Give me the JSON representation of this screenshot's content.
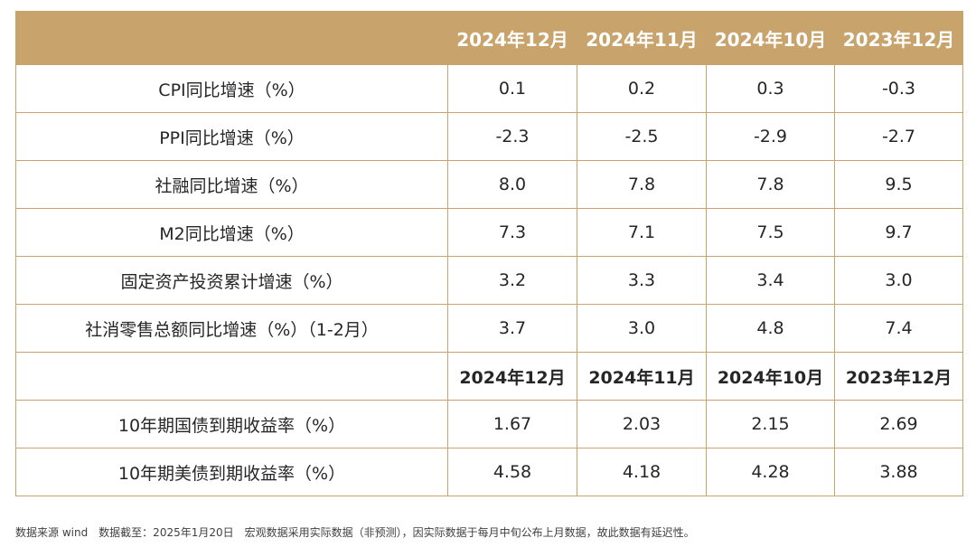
{
  "table": {
    "header_top": [
      "",
      "2024年12月",
      "2024年11月",
      "2024年10月",
      "2023年12月"
    ],
    "rows_top": [
      {
        "label": "CPI同比增速（%）",
        "values": [
          "0.1",
          "0.2",
          "0.3",
          "-0.3"
        ]
      },
      {
        "label": "PPI同比增速（%）",
        "values": [
          "-2.3",
          "-2.5",
          "-2.9",
          "-2.7"
        ]
      },
      {
        "label": "社融同比增速（%）",
        "values": [
          "8.0",
          "7.8",
          "7.8",
          "9.5"
        ]
      },
      {
        "label": "M2同比增速（%）",
        "values": [
          "7.3",
          "7.1",
          "7.5",
          "9.7"
        ]
      },
      {
        "label": "固定资产投资累计增速（%）",
        "values": [
          "3.2",
          "3.3",
          "3.4",
          "3.0"
        ]
      },
      {
        "label": "社消零售总额同比增速（%）（1-2月）",
        "values": [
          "3.7",
          "3.0",
          "4.8",
          "7.4"
        ]
      }
    ],
    "header_mid": [
      "",
      "2024年12月",
      "2024年11月",
      "2024年10月",
      "2023年12月"
    ],
    "rows_bottom": [
      {
        "label": "10年期国债到期收益率（%）",
        "values": [
          "1.67",
          "2.03",
          "2.15",
          "2.69"
        ]
      },
      {
        "label": "10年期美债到期收益率（%）",
        "values": [
          "4.58",
          "4.18",
          "4.28",
          "3.88"
        ]
      }
    ]
  },
  "footnote": "数据来源 wind　数据截至：2025年1月20日　宏观数据采用实际数据（非预测），因实际数据于每月中旬公布上月数据，故此数据有延迟性。",
  "colors": {
    "accent": "#c9a36c",
    "header_text": "#ffffff",
    "body_text": "#262626"
  }
}
